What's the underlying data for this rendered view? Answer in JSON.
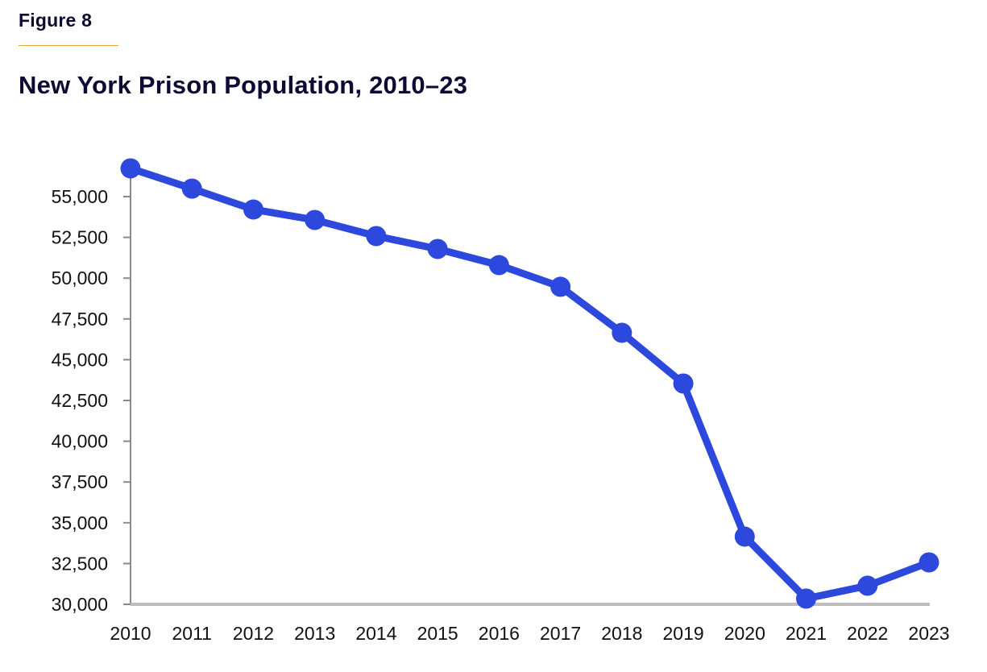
{
  "figure_label": "Figure 8",
  "title": "New York Prison Population, 2010–23",
  "colors": {
    "line": "#2d48dc",
    "title": "#0b0b33",
    "accent_rule": "#e8a33a",
    "x_axis": "#bdbdbd",
    "y_axis": "#8a8a8a"
  },
  "chart_data": {
    "type": "line",
    "title": "New York Prison Population, 2010–23",
    "xlabel": "",
    "ylabel": "",
    "x": [
      "2010",
      "2011",
      "2012",
      "2013",
      "2014",
      "2015",
      "2016",
      "2017",
      "2018",
      "2019",
      "2020",
      "2021",
      "2022",
      "2023"
    ],
    "series": [
      {
        "name": "Prison population",
        "values": [
          56730,
          55490,
          54210,
          53570,
          52580,
          51790,
          50800,
          49470,
          46650,
          43540,
          34150,
          30350,
          31140,
          32570
        ]
      }
    ],
    "ylim": [
      30000,
      56730
    ],
    "yticks": [
      30000,
      32500,
      35000,
      37500,
      40000,
      42500,
      45000,
      47500,
      50000,
      52500,
      55000
    ],
    "ytick_labels": [
      "30,000",
      "32,500",
      "35,000",
      "37,500",
      "40,000",
      "42,500",
      "45,000",
      "47,500",
      "50,000",
      "52,500",
      "55,000"
    ],
    "grid": false,
    "legend": "none",
    "markers": true
  }
}
